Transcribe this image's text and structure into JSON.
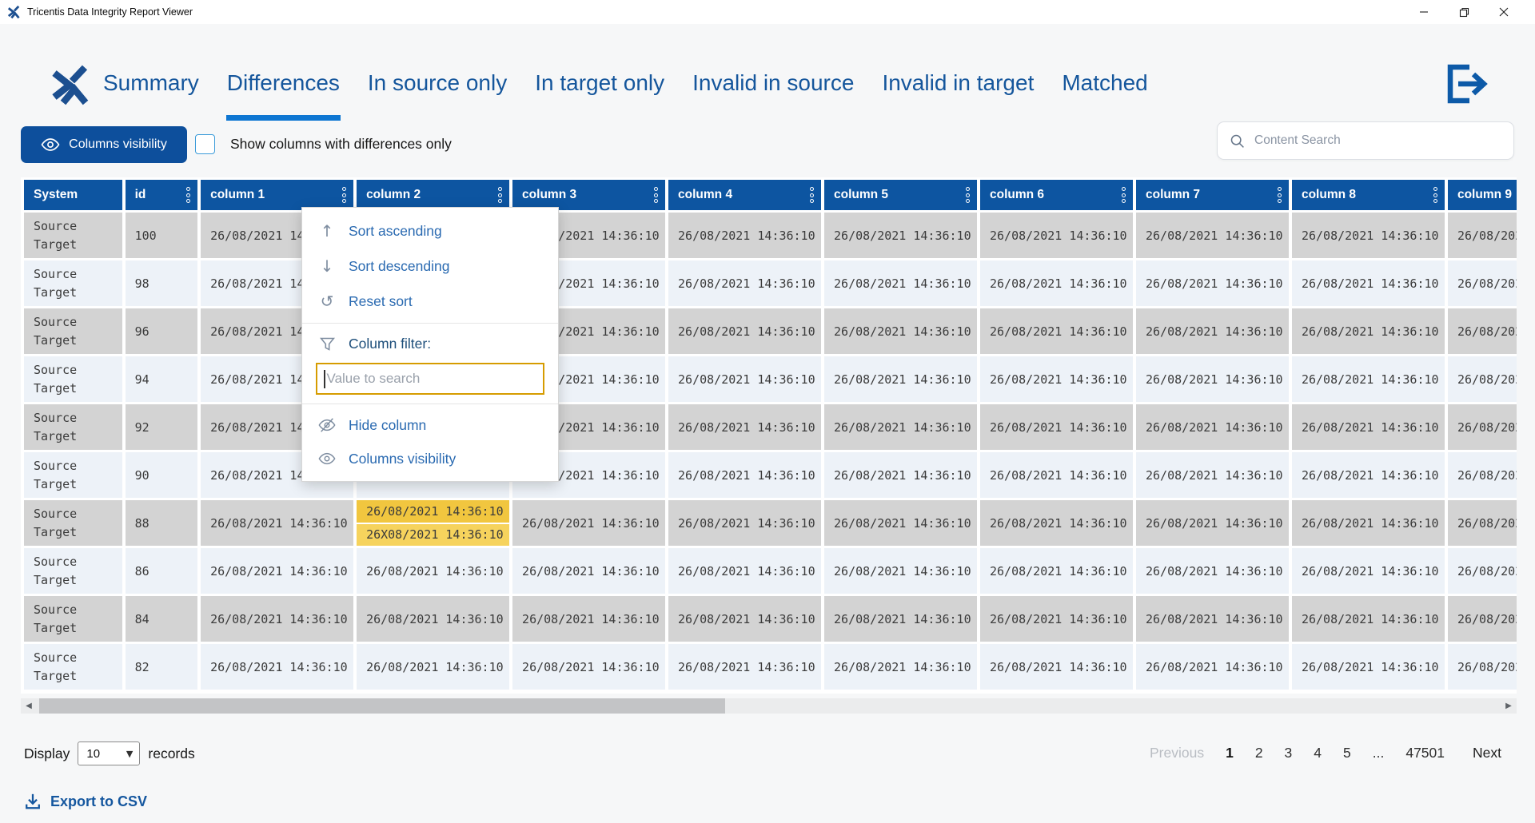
{
  "colors": {
    "header_blue": "#0d55a1",
    "nav_blue": "#15569c",
    "active_tab_underline": "#0e76d2",
    "primary_button_blue": "#0d4f9c",
    "menu_link_blue": "#2a6ab1",
    "row_odd_gray": "#d3d3d3",
    "row_even_blue": "#edf2f8",
    "diff_source_bg": "#f1c63f",
    "diff_target_bg": "#f6d35d",
    "filter_input_border": "#d69c00"
  },
  "window": {
    "title": "Tricentis Data Integrity Report Viewer"
  },
  "nav": {
    "tabs": [
      {
        "label": "Summary",
        "active": false
      },
      {
        "label": "Differences",
        "active": true
      },
      {
        "label": "In source only",
        "active": false
      },
      {
        "label": "In target only",
        "active": false
      },
      {
        "label": "Invalid in source",
        "active": false
      },
      {
        "label": "Invalid in target",
        "active": false
      },
      {
        "label": "Matched",
        "active": false
      }
    ]
  },
  "toolbar": {
    "columns_visibility_label": "Columns visibility",
    "show_differences_only_label": "Show columns with differences only",
    "differences_checkbox_checked": false,
    "search_placeholder": "Content Search"
  },
  "context_menu": {
    "items": [
      {
        "icon": "arrow-up-icon",
        "label": "Sort ascending"
      },
      {
        "icon": "arrow-down-icon",
        "label": "Sort descending"
      },
      {
        "icon": "undo-icon",
        "label": "Reset sort"
      },
      {
        "type": "separator"
      },
      {
        "icon": "funnel-icon",
        "label": "Column filter:",
        "style": "heading"
      },
      {
        "type": "input",
        "placeholder": "Value to search"
      },
      {
        "type": "separator"
      },
      {
        "icon": "eye-off-icon",
        "label": "Hide column"
      },
      {
        "icon": "eye-icon",
        "label": "Columns visibility"
      }
    ]
  },
  "table": {
    "columns": [
      {
        "label": "System",
        "has_menu": false
      },
      {
        "label": "id",
        "has_menu": true
      },
      {
        "label": "column 1",
        "has_menu": true
      },
      {
        "label": "column 2",
        "has_menu": true
      },
      {
        "label": "column 3",
        "has_menu": true
      },
      {
        "label": "column 4",
        "has_menu": true
      },
      {
        "label": "column 5",
        "has_menu": true
      },
      {
        "label": "column 6",
        "has_menu": true
      },
      {
        "label": "column 7",
        "has_menu": true
      },
      {
        "label": "column 8",
        "has_menu": true
      },
      {
        "label": "column 9",
        "has_menu": true
      }
    ],
    "system_lines": [
      "Source",
      "Target"
    ],
    "default_value": "26/08/2021 14:36:10",
    "rows": [
      {
        "id": "100"
      },
      {
        "id": "98"
      },
      {
        "id": "96"
      },
      {
        "id": "94"
      },
      {
        "id": "92"
      },
      {
        "id": "90"
      },
      {
        "id": "88",
        "diff": {
          "column": "column 2",
          "source_value": "26/08/2021 14:36:10",
          "target_value": "26X08/2021 14:36:10"
        }
      },
      {
        "id": "86"
      },
      {
        "id": "84"
      },
      {
        "id": "82"
      }
    ]
  },
  "pagination": {
    "display_label": "Display",
    "page_size": "10",
    "records_label": "records",
    "previous_label": "Previous",
    "pages": [
      "1",
      "2",
      "3",
      "4",
      "5",
      "...",
      "47501"
    ],
    "current_page": "1",
    "next_label": "Next"
  },
  "export": {
    "label": "Export to CSV"
  }
}
